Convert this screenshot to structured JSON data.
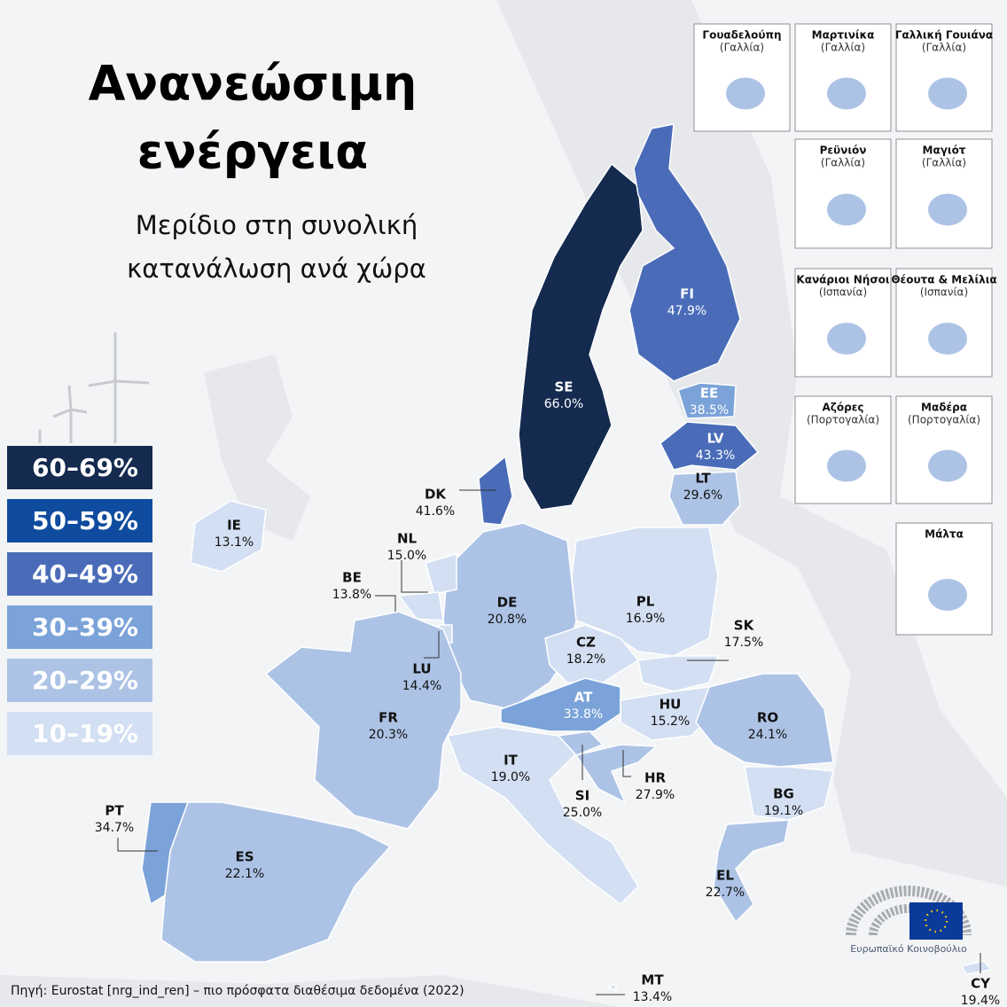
{
  "header": {
    "title_lines": [
      "Ανανεώσιμη",
      "ενέργεια"
    ],
    "subtitle_lines": [
      "Μερίδιο στη συνολική",
      "κατανάλωση ανά χώρα"
    ]
  },
  "legend": [
    {
      "label": "60–69%",
      "min": 60,
      "max": 69,
      "color": "#142a4f"
    },
    {
      "label": "50–59%",
      "min": 50,
      "max": 59,
      "color": "#0f4c9f"
    },
    {
      "label": "40–49%",
      "min": 40,
      "max": 49,
      "color": "#4a6cb8"
    },
    {
      "label": "30–39%",
      "min": 30,
      "max": 39,
      "color": "#7ba3d9"
    },
    {
      "label": "20–29%",
      "min": 20,
      "max": 29,
      "color": "#adc3e6"
    },
    {
      "label": "10–19%",
      "min": 10,
      "max": 19,
      "color": "#d3dff2"
    }
  ],
  "countries": [
    {
      "code": "SE",
      "value": 66.0,
      "label": "66.0%"
    },
    {
      "code": "FI",
      "value": 47.9,
      "label": "47.9%"
    },
    {
      "code": "EE",
      "value": 38.5,
      "label": "38.5%"
    },
    {
      "code": "LV",
      "value": 43.3,
      "label": "43.3%"
    },
    {
      "code": "LT",
      "value": 29.6,
      "label": "29.6%"
    },
    {
      "code": "DK",
      "value": 41.6,
      "label": "41.6%"
    },
    {
      "code": "PL",
      "value": 16.9,
      "label": "16.9%"
    },
    {
      "code": "DE",
      "value": 20.8,
      "label": "20.8%"
    },
    {
      "code": "NL",
      "value": 15.0,
      "label": "15.0%"
    },
    {
      "code": "BE",
      "value": 13.8,
      "label": "13.8%"
    },
    {
      "code": "LU",
      "value": 14.4,
      "label": "14.4%"
    },
    {
      "code": "FR",
      "value": 20.3,
      "label": "20.3%"
    },
    {
      "code": "CZ",
      "value": 18.2,
      "label": "18.2%"
    },
    {
      "code": "SK",
      "value": 17.5,
      "label": "17.5%"
    },
    {
      "code": "AT",
      "value": 33.8,
      "label": "33.8%"
    },
    {
      "code": "HU",
      "value": 15.2,
      "label": "15.2%"
    },
    {
      "code": "RO",
      "value": 24.1,
      "label": "24.1%"
    },
    {
      "code": "IT",
      "value": 19.0,
      "label": "19.0%"
    },
    {
      "code": "SI",
      "value": 25.0,
      "label": "25.0%"
    },
    {
      "code": "HR",
      "value": 27.9,
      "label": "27.9%"
    },
    {
      "code": "BG",
      "value": 19.1,
      "label": "19.1%"
    },
    {
      "code": "EL",
      "value": 22.7,
      "label": "22.7%"
    },
    {
      "code": "ES",
      "value": 22.1,
      "label": "22.1%"
    },
    {
      "code": "PT",
      "value": 34.7,
      "label": "34.7%"
    },
    {
      "code": "IE",
      "value": 13.1,
      "label": "13.1%"
    },
    {
      "code": "MT",
      "value": 13.4,
      "label": "13.4%"
    },
    {
      "code": "CY",
      "value": 19.4,
      "label": "19.4%"
    }
  ],
  "insets": [
    {
      "name": "Γουαδελούπη",
      "region": "(Γαλλία)"
    },
    {
      "name": "Μαρτινίκα",
      "region": "(Γαλλία)"
    },
    {
      "name": "Γαλλική Γουιάνα",
      "region": "(Γαλλία)"
    },
    {
      "name": "Ρεϋνιόν",
      "region": "(Γαλλία)"
    },
    {
      "name": "Μαγιότ",
      "region": "(Γαλλία)"
    },
    {
      "name": "Κανάριοι Νήσοι",
      "region": "(Ισπανία)"
    },
    {
      "name": "Θέουτα & Μελίλια",
      "region": "(Ισπανία)"
    },
    {
      "name": "Αζόρες",
      "region": "(Πορτογαλία)"
    },
    {
      "name": "Μαδέρα",
      "region": "(Πορτογαλία)"
    },
    {
      "name": "Μάλτα"
    }
  ],
  "source": "Πηγή: Eurostat [nrg_ind_ren]  – πιο πρόσφατα διαθέσιμα δεδομένα (2022)",
  "logo": "Ευρωπαϊκό Κοινοβούλιο"
}
